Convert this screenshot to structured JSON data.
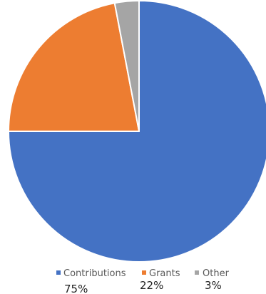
{
  "chart_data": {
    "type": "pie",
    "categories": [
      "Contributions",
      "Grants",
      "Other"
    ],
    "values": [
      75,
      22,
      3
    ],
    "value_labels": [
      "75%",
      "22%",
      "3%"
    ],
    "colors": [
      "#4472C4",
      "#ED7D31",
      "#A5A5A5"
    ],
    "slice_border_color": "#FFFFFF",
    "start": "12 o'clock",
    "direction": "clockwise",
    "legend_position": "bottom",
    "title": ""
  }
}
